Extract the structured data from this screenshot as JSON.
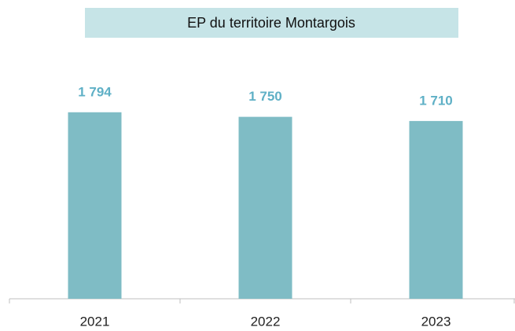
{
  "chart_data": {
    "type": "bar",
    "title": "EP du territoire Montargois",
    "categories": [
      "2021",
      "2022",
      "2023"
    ],
    "values": [
      1794,
      1750,
      1710
    ],
    "value_labels": [
      "1 794",
      "1 750",
      "1 710"
    ],
    "color": "#7fbcc5",
    "ylim": [
      0,
      1800
    ]
  }
}
